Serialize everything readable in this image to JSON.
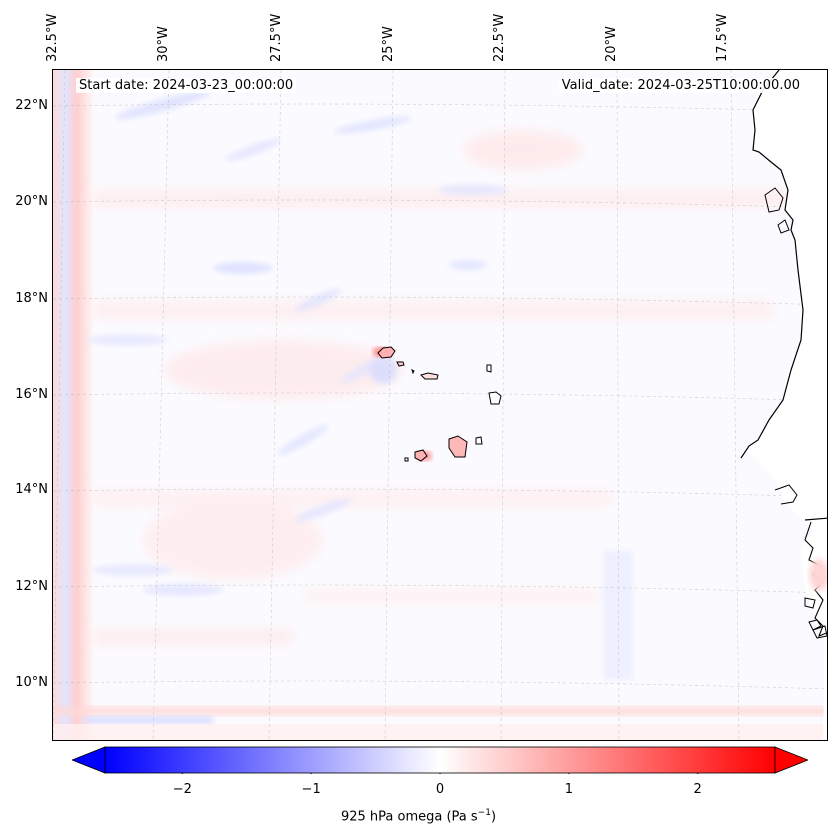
{
  "map": {
    "start_date": "Start date: 2024-03-23_00:00:00",
    "valid_date": "Valid_date: 2024-03-25T10:00:00.00",
    "lon_labels": [
      "32.5°W",
      "30°W",
      "27.5°W",
      "25°W",
      "22.5°W",
      "20°W",
      "17.5°W"
    ],
    "lat_labels": [
      "22°N",
      "20°N",
      "18°N",
      "16°N",
      "14°N",
      "12°N",
      "10°N"
    ]
  },
  "colorbar": {
    "label_prefix": "925 hPa omega (Pa s",
    "label_exp": "−1",
    "label_suffix": ")",
    "range": [
      -2.6,
      2.6
    ],
    "ticks": [
      {
        "value": -2,
        "text": "−2"
      },
      {
        "value": -1,
        "text": "−1"
      },
      {
        "value": 0,
        "text": "0"
      },
      {
        "value": 1,
        "text": "1"
      },
      {
        "value": 2,
        "text": "2"
      }
    ],
    "colors": {
      "negative": "#0000ff",
      "zero": "#ffffff",
      "positive": "#ff0000"
    }
  }
}
